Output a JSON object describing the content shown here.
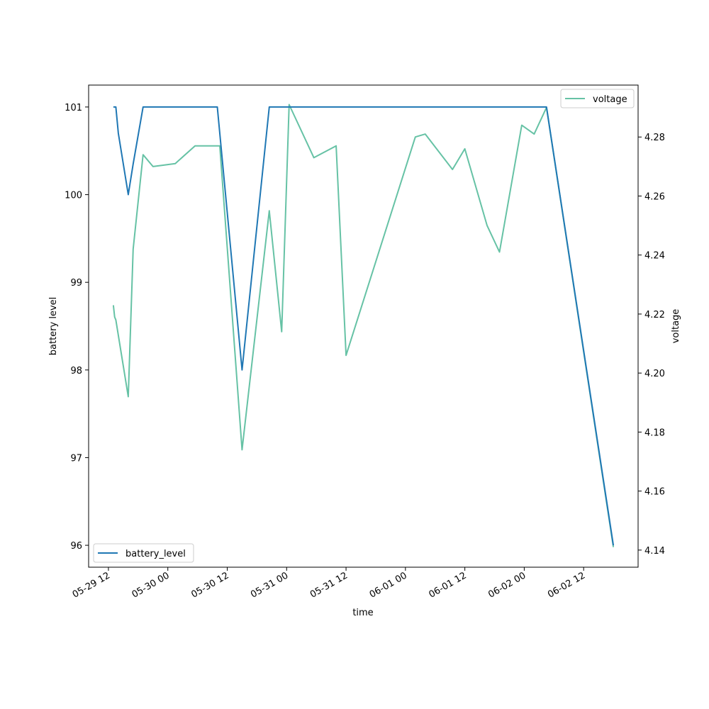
{
  "chart_data": {
    "type": "line",
    "xlabel": "time",
    "ylabel_left": "battery level",
    "ylabel_right": "voltage",
    "x_ticks": [
      "05-29 12",
      "05-30 00",
      "05-30 12",
      "05-31 00",
      "05-31 12",
      "06-01 00",
      "06-01 12",
      "06-02 00",
      "06-02 12"
    ],
    "x_range": [
      "2025-05-29T08:00",
      "2025-06-02T23:00"
    ],
    "y_left_ticks": [
      96,
      97,
      98,
      99,
      100,
      101
    ],
    "y_left_range": [
      95.75,
      101.25
    ],
    "y_right_ticks": [
      4.14,
      4.16,
      4.18,
      4.2,
      4.22,
      4.24,
      4.26,
      4.28
    ],
    "y_right_range": [
      4.1342,
      4.2976
    ],
    "legend_left": "bottom-left",
    "legend_right": "top-right",
    "grid": false,
    "series": [
      {
        "name": "battery_level",
        "axis": "left",
        "color": "#1f77b4",
        "points": [
          [
            "2025-05-29T13:00",
            101
          ],
          [
            "2025-05-29T13:30",
            101
          ],
          [
            "2025-05-29T14:00",
            100.7
          ],
          [
            "2025-05-29T16:00",
            100
          ],
          [
            "2025-05-29T17:00",
            100.35
          ],
          [
            "2025-05-29T19:00",
            101
          ],
          [
            "2025-05-30T02:00",
            101
          ],
          [
            "2025-05-30T09:00",
            101
          ],
          [
            "2025-05-30T10:00",
            101
          ],
          [
            "2025-05-30T15:00",
            98
          ],
          [
            "2025-05-30T20:30",
            101
          ],
          [
            "2025-05-30T23:00",
            101
          ],
          [
            "2025-05-31T00:30",
            101
          ],
          [
            "2025-06-01T12:00",
            101
          ],
          [
            "2025-06-02T04:30",
            101
          ],
          [
            "2025-06-02T18:00",
            96
          ]
        ]
      },
      {
        "name": "voltage",
        "axis": "right",
        "color": "#66c2a5",
        "points": [
          [
            "2025-05-29T13:00",
            4.223
          ],
          [
            "2025-05-29T13:15",
            4.219
          ],
          [
            "2025-05-29T13:30",
            4.218
          ],
          [
            "2025-05-29T16:00",
            4.192
          ],
          [
            "2025-05-29T17:00",
            4.242
          ],
          [
            "2025-05-29T18:30",
            4.266
          ],
          [
            "2025-05-29T19:00",
            4.274
          ],
          [
            "2025-05-29T21:00",
            4.27
          ],
          [
            "2025-05-30T01:30",
            4.271
          ],
          [
            "2025-05-30T05:30",
            4.277
          ],
          [
            "2025-05-30T10:30",
            4.277
          ],
          [
            "2025-05-30T15:00",
            4.174
          ],
          [
            "2025-05-30T20:30",
            4.255
          ],
          [
            "2025-05-30T23:00",
            4.214
          ],
          [
            "2025-05-31T00:30",
            4.291
          ],
          [
            "2025-05-31T05:30",
            4.273
          ],
          [
            "2025-05-31T10:00",
            4.277
          ],
          [
            "2025-05-31T12:00",
            4.206
          ],
          [
            "2025-06-01T02:00",
            4.28
          ],
          [
            "2025-06-01T04:00",
            4.281
          ],
          [
            "2025-06-01T09:30",
            4.269
          ],
          [
            "2025-06-01T12:00",
            4.276
          ],
          [
            "2025-06-01T16:30",
            4.25
          ],
          [
            "2025-06-01T19:00",
            4.241
          ],
          [
            "2025-06-01T23:30",
            4.284
          ],
          [
            "2025-06-02T02:00",
            4.281
          ],
          [
            "2025-06-02T04:30",
            4.29
          ],
          [
            "2025-06-02T18:00",
            4.141
          ]
        ]
      }
    ]
  }
}
